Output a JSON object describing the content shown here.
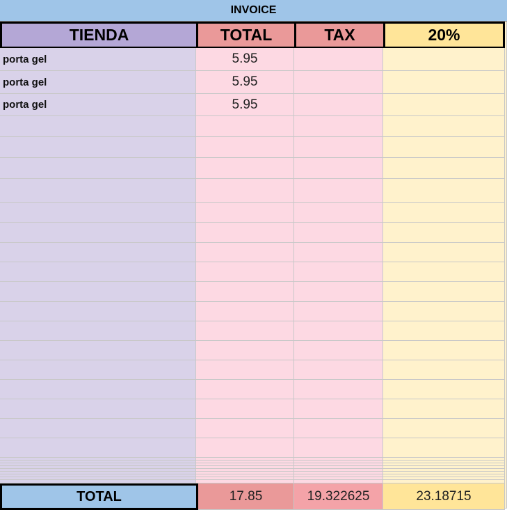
{
  "header": {
    "title": "INVOICE"
  },
  "table": {
    "columns": [
      "TIENDA",
      "TOTAL",
      "TAX",
      "20%"
    ],
    "rows": [
      [
        "porta gel",
        "5.95"
      ],
      [
        "porta gel",
        "5.95"
      ],
      [
        "porta gel",
        "5.95"
      ]
    ],
    "totals": [
      "TOTAL",
      "17.85",
      "19.322625",
      "23.18715"
    ]
  }
}
